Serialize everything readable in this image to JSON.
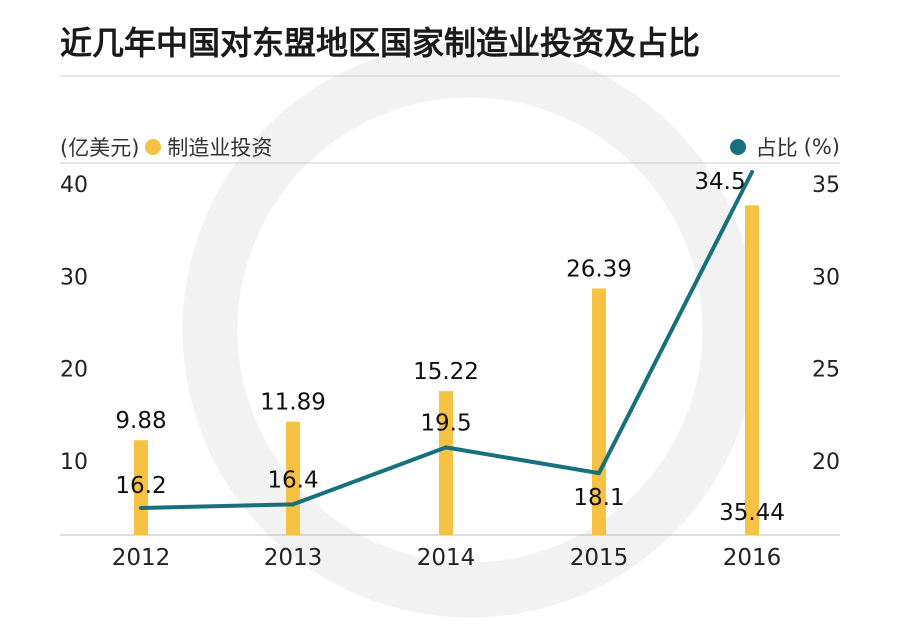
{
  "chart_data": {
    "type": "bar+line",
    "title": "近几年中国对东盟地区国家制造业投资及占比",
    "categories": [
      "2012",
      "2013",
      "2014",
      "2015",
      "2016"
    ],
    "series": [
      {
        "name": "制造业投资",
        "type": "bar",
        "axis": "left",
        "values": [
          9.88,
          11.89,
          15.22,
          26.39,
          35.44
        ],
        "color": "#f6c244",
        "labels": [
          "9.88",
          "11.89",
          "15.22",
          "26.39",
          "35.44"
        ]
      },
      {
        "name": "占比",
        "type": "line",
        "axis": "right",
        "values": [
          16.2,
          16.4,
          19.5,
          18.1,
          34.5
        ],
        "color": "#17707e",
        "labels": [
          "16.2",
          "16.4",
          "19.5",
          "18.1",
          "34.5"
        ]
      }
    ],
    "left_axis": {
      "label": "(亿美元)",
      "ticks": [
        "10",
        "20",
        "30",
        "40"
      ]
    },
    "right_axis": {
      "label": "(%)",
      "ticks": [
        "20",
        "25",
        "30",
        "35"
      ]
    },
    "legend_placement": "top",
    "grid": false
  }
}
